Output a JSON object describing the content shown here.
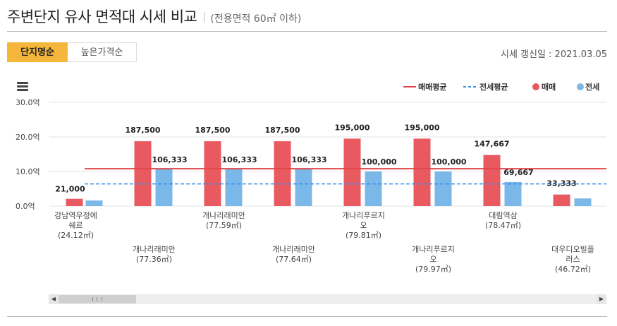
{
  "header": {
    "title": "주변단지 유사 면적대 시세 비교",
    "subtitle": "(전용면적 60㎡ 이하)"
  },
  "tabs": [
    {
      "label": "단지명순",
      "active": true
    },
    {
      "label": "높은가격순",
      "active": false
    }
  ],
  "update_text": "시세 갱신일 : 2021.03.05",
  "chart_data": {
    "type": "bar",
    "title": "",
    "ylabel": "억",
    "ylim": [
      0,
      30
    ],
    "yticks": [
      "0.0억",
      "10.0억",
      "20.0억",
      "30.0억"
    ],
    "ytick_values": [
      0,
      10,
      20,
      30
    ],
    "legend": [
      {
        "label": "매매평균",
        "kind": "line",
        "color": "#e0474c"
      },
      {
        "label": "전세평균",
        "kind": "dashed",
        "color": "#3a8ee6"
      },
      {
        "label": "매매",
        "kind": "dot",
        "color": "#e95a60"
      },
      {
        "label": "전세",
        "kind": "dot",
        "color": "#7ab8ea"
      }
    ],
    "categories": [
      {
        "name": [
          "강남역우정에",
          "쉐르"
        ],
        "area": "(24.12㎡)"
      },
      {
        "name": [
          "개나리래미안"
        ],
        "area": "(77.36㎡)"
      },
      {
        "name": [
          "개나리래미안"
        ],
        "area": "(77.59㎡)"
      },
      {
        "name": [
          "개나리래미안"
        ],
        "area": "(77.64㎡)"
      },
      {
        "name": [
          "개나리푸르지",
          "오"
        ],
        "area": "(79.81㎡)"
      },
      {
        "name": [
          "개나리푸르지",
          "오"
        ],
        "area": "(79.97㎡)"
      },
      {
        "name": [
          "대림역삼"
        ],
        "area": "(78.47㎡)"
      },
      {
        "name": [
          "대우디오빌플",
          "러스"
        ],
        "area": "(46.72㎡)"
      }
    ],
    "series": [
      {
        "name": "매매",
        "color": "#e95a60",
        "values": [
          2.1,
          18.75,
          18.75,
          18.75,
          19.5,
          19.5,
          14.7667,
          3.3333
        ],
        "labels": [
          "21,000",
          "187,500",
          "187,500",
          "187,500",
          "195,000",
          "195,000",
          "147,667",
          "33,333"
        ]
      },
      {
        "name": "전세",
        "color": "#7ab8ea",
        "values": [
          1.6,
          10.6333,
          10.6333,
          10.6333,
          10.0,
          10.0,
          6.9667,
          2.2
        ],
        "labels": [
          "",
          "106,333",
          "106,333",
          "106,333",
          "100,000",
          "100,000",
          "69,667",
          ""
        ]
      }
    ],
    "sale_average": 10.8,
    "rent_average": 6.4
  }
}
